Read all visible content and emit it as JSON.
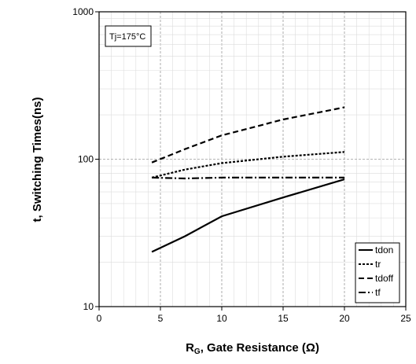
{
  "chart_data": {
    "type": "line",
    "annotation": "Tj=175°C",
    "xlabel": {
      "main": "R",
      "sub": "G",
      "rest": ", Gate Resistance (Ω)"
    },
    "ylabel": "t, Switching Times(ns)",
    "x_ticks": [
      "0",
      "5",
      "10",
      "15",
      "20",
      "25"
    ],
    "y_ticks": [
      "10",
      "100",
      "1000"
    ],
    "xlim": [
      0,
      25
    ],
    "ylim": [
      10,
      1000
    ],
    "y_scale": "log",
    "grid": true,
    "legend_position": "bottom-right",
    "series": [
      {
        "name": "tdon",
        "dash": "solid",
        "x": [
          4.3,
          7,
          10,
          15,
          20
        ],
        "y": [
          23.5,
          30,
          41,
          55,
          73
        ]
      },
      {
        "name": "tr",
        "dash": "dotted",
        "x": [
          4.3,
          7,
          10,
          15,
          20
        ],
        "y": [
          75,
          85,
          94,
          104,
          112
        ]
      },
      {
        "name": "tdoff",
        "dash": "dashed",
        "x": [
          4.3,
          7,
          10,
          15,
          20
        ],
        "y": [
          95,
          117,
          145,
          186,
          225
        ]
      },
      {
        "name": "tf",
        "dash": "dashdot",
        "x": [
          4.3,
          7,
          10,
          15,
          20
        ],
        "y": [
          75,
          74,
          75,
          75,
          75
        ]
      }
    ]
  }
}
